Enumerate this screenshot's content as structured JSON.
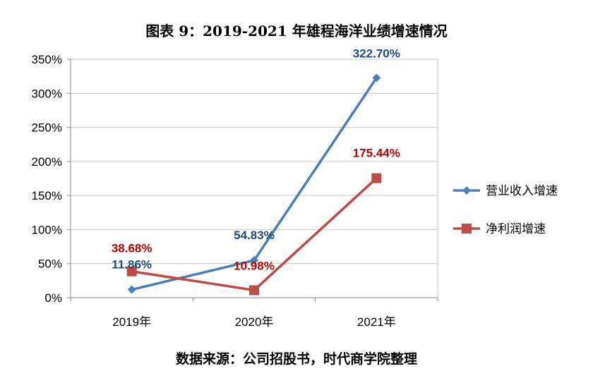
{
  "title": "图表 9：2019-2021 年雄程海洋业绩增速情况",
  "source": "数据来源：公司招股书，时代商学院整理",
  "chart_data": {
    "type": "line",
    "categories": [
      "2019年",
      "2020年",
      "2021年"
    ],
    "series": [
      {
        "name": "营业收入增速",
        "values": [
          11.86,
          54.83,
          322.7
        ],
        "labels": [
          "11.86%",
          "54.83%",
          "322.70%"
        ],
        "color": "#4a7ebb",
        "marker": "diamond"
      },
      {
        "name": "净利润增速",
        "values": [
          38.68,
          10.98,
          175.44
        ],
        "labels": [
          "38.68%",
          "10.98%",
          "175.44%"
        ],
        "color": "#be4b48",
        "marker": "square"
      }
    ],
    "ylim": [
      0,
      350
    ],
    "yticks": [
      "0%",
      "50%",
      "100%",
      "150%",
      "200%",
      "250%",
      "300%",
      "350%"
    ],
    "grid": true,
    "legend": "right"
  }
}
